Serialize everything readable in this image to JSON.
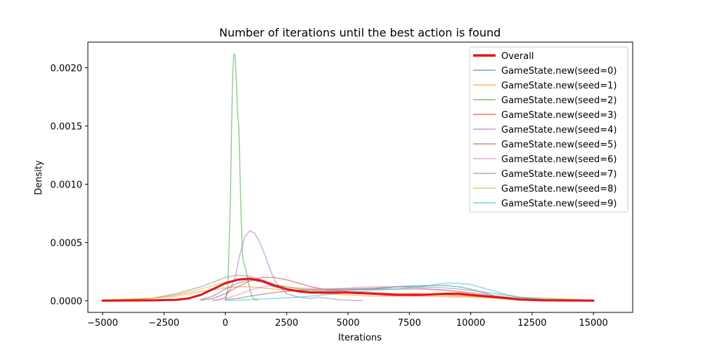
{
  "chart_data": {
    "type": "line",
    "title": "Number of iterations until the best action is found",
    "xlabel": "Iterations",
    "ylabel": "Density",
    "xlim": [
      -5600,
      16600
    ],
    "ylim": [
      -0.0001,
      0.00222
    ],
    "xticks": [
      -5000,
      -2500,
      0,
      2500,
      5000,
      7500,
      10000,
      12500,
      15000
    ],
    "xtick_labels": [
      "−5000",
      "−2500",
      "0",
      "2500",
      "5000",
      "7500",
      "10000",
      "12500",
      "15000"
    ],
    "yticks": [
      0.0,
      0.0005,
      0.001,
      0.0015,
      0.002
    ],
    "ytick_labels": [
      "0.0000",
      "0.0005",
      "0.0010",
      "0.0015",
      "0.0020"
    ],
    "grid": false,
    "legend_position": "top-right",
    "series": [
      {
        "name": "Overall",
        "color": "#ee1111",
        "overall": true,
        "x": [
          -5000,
          -3000,
          -2000,
          -1500,
          -1000,
          -500,
          0,
          500,
          1000,
          1500,
          2000,
          2500,
          3000,
          3500,
          4000,
          5000,
          6000,
          7000,
          8000,
          9000,
          9500,
          10000,
          11000,
          12000,
          13000,
          15000
        ],
        "y": [
          1e-06,
          3e-06,
          8e-06,
          2e-05,
          5e-05,
          0.0001,
          0.00015,
          0.00018,
          0.00019,
          0.00017,
          0.00013,
          0.0001,
          8e-05,
          7e-05,
          7e-05,
          7e-05,
          6e-05,
          5e-05,
          5e-05,
          6e-05,
          6e-05,
          5e-05,
          3e-05,
          1e-05,
          3e-06,
          1e-06
        ]
      },
      {
        "name": "GameState.new(seed=0)",
        "color": "#1f77b4",
        "x": [
          -1000,
          -500,
          0,
          500,
          1000,
          1500,
          2000,
          2500,
          3000,
          3500,
          4000,
          5000,
          6000,
          7000,
          8000,
          9000,
          9500,
          10000,
          10500,
          11000,
          12000,
          13000,
          15000
        ],
        "y": [
          1e-05,
          4e-05,
          0.0001,
          0.00015,
          0.00018,
          0.00016,
          0.00012,
          0.0001,
          9e-05,
          8e-05,
          8e-05,
          9e-05,
          0.0001,
          0.00012,
          0.00013,
          0.00013,
          0.00012,
          0.0001,
          7e-05,
          4e-05,
          2e-05,
          5e-06,
          1e-06
        ]
      },
      {
        "name": "GameState.new(seed=1)",
        "color": "#ff7f0e",
        "x": [
          -5000,
          -3000,
          -2000,
          -1000,
          0,
          500,
          1000,
          1500,
          2000,
          2500,
          3000,
          3500,
          4000,
          5000,
          6000,
          7000,
          8000,
          10000,
          12500,
          15000
        ],
        "y": [
          5e-06,
          2e-05,
          4e-05,
          8e-05,
          0.00011,
          0.00012,
          0.00012,
          0.00011,
          0.0001,
          9e-05,
          8e-05,
          7e-05,
          6e-05,
          5e-05,
          4e-05,
          4e-05,
          4e-05,
          3e-05,
          1e-05,
          5e-06
        ]
      },
      {
        "name": "GameState.new(seed=2)",
        "color": "#2ca02c",
        "x": [
          0,
          100,
          200,
          250,
          300,
          350,
          400,
          450,
          500,
          550,
          600,
          650,
          700,
          750,
          800,
          900,
          1000,
          1100,
          1200,
          1300
        ],
        "y": [
          1e-05,
          0.0001,
          0.0008,
          0.0014,
          0.00195,
          0.00212,
          0.0021,
          0.0019,
          0.0016,
          0.0015,
          0.0011,
          0.0007,
          0.0004,
          0.00032,
          0.0003,
          0.0002,
          0.0001,
          3e-05,
          1e-05,
          5e-06
        ]
      },
      {
        "name": "GameState.new(seed=3)",
        "color": "#d62728",
        "x": [
          -1000,
          -500,
          0,
          500,
          1000,
          1500,
          2000,
          2500,
          3000,
          3500,
          4000,
          5000,
          6000,
          7000,
          8000,
          9000,
          10000,
          11000,
          12000,
          13000,
          15000
        ],
        "y": [
          5e-06,
          2e-05,
          6e-05,
          0.00012,
          0.00017,
          0.0002,
          0.0002,
          0.00018,
          0.00015,
          0.00012,
          0.0001,
          8e-05,
          7e-05,
          6e-05,
          6e-05,
          5e-05,
          4e-05,
          3e-05,
          2e-05,
          1e-05,
          3e-06
        ]
      },
      {
        "name": "GameState.new(seed=4)",
        "color": "#9467bd",
        "x": [
          -500,
          -200,
          0,
          200,
          400,
          600,
          800,
          1000,
          1200,
          1400,
          1600,
          1800,
          2000,
          2200,
          2500,
          3000,
          3500,
          3800,
          4200,
          4600,
          5000,
          5600
        ],
        "y": [
          2e-06,
          1e-05,
          3e-05,
          0.0001,
          0.0002,
          0.0004,
          0.00055,
          0.0006,
          0.00058,
          0.0005,
          0.0004,
          0.00028,
          0.00018,
          0.00012,
          6e-05,
          3e-05,
          2e-05,
          3e-05,
          2e-05,
          1e-05,
          5e-06,
          2e-06
        ]
      },
      {
        "name": "GameState.new(seed=5)",
        "color": "#8c564b",
        "x": [
          0,
          500,
          1000,
          2000,
          3000,
          4000,
          5000,
          6000,
          7000,
          8000,
          9000,
          10000,
          11000,
          12000,
          13000,
          15000
        ],
        "y": [
          1e-05,
          2e-05,
          4e-05,
          7e-05,
          9e-05,
          0.0001,
          0.0001,
          0.0001,
          0.0001,
          0.0001,
          9e-05,
          7e-05,
          4e-05,
          2e-05,
          1e-05,
          5e-06
        ]
      },
      {
        "name": "GameState.new(seed=6)",
        "color": "#e377c2",
        "x": [
          -500,
          0,
          500,
          1000,
          1500,
          2000,
          2500,
          3000,
          4000,
          5000,
          6000,
          7000,
          8000,
          9000,
          10000,
          11000,
          12000,
          13000,
          15000
        ],
        "y": [
          5e-06,
          2e-05,
          5e-05,
          9e-05,
          0.00012,
          0.00013,
          0.00012,
          0.00011,
          0.0001,
          0.00011,
          0.00012,
          0.00012,
          0.00011,
          9e-05,
          6e-05,
          3e-05,
          2e-05,
          1e-05,
          3e-06
        ]
      },
      {
        "name": "GameState.new(seed=7)",
        "color": "#7f7f7f",
        "x": [
          -5000,
          -3000,
          -2000,
          -1000,
          -500,
          0,
          500,
          1000,
          1500,
          2000,
          3000,
          4000,
          5000,
          6000,
          7000,
          8000,
          9000,
          10000,
          11000,
          12000,
          15000
        ],
        "y": [
          5e-06,
          2e-05,
          6e-05,
          0.00012,
          0.00016,
          0.0002,
          0.00022,
          0.00021,
          0.00018,
          0.00014,
          0.0001,
          9e-05,
          0.0001,
          0.00011,
          0.00012,
          0.00012,
          0.00011,
          9e-05,
          6e-05,
          3e-05,
          5e-06
        ]
      },
      {
        "name": "GameState.new(seed=8)",
        "color": "#bcbd22",
        "x": [
          -5000,
          -3000,
          -2000,
          -1000,
          0,
          500,
          1000,
          1500,
          2000,
          3000,
          4000,
          5000,
          6000,
          8000,
          10000,
          12000,
          15000
        ],
        "y": [
          5e-06,
          2e-05,
          5e-05,
          0.0001,
          0.00016,
          0.00018,
          0.00019,
          0.00017,
          0.00014,
          0.0001,
          8e-05,
          7e-05,
          6e-05,
          5e-05,
          4e-05,
          2e-05,
          5e-06
        ]
      },
      {
        "name": "GameState.new(seed=9)",
        "color": "#17becf",
        "x": [
          0,
          500,
          1000,
          2000,
          3000,
          4000,
          5000,
          6000,
          7000,
          8000,
          8500,
          9000,
          9500,
          10000,
          10500,
          11000,
          11500,
          12000,
          13000,
          15000
        ],
        "y": [
          2e-06,
          5e-06,
          1e-05,
          2e-05,
          3e-05,
          5e-05,
          7e-05,
          9e-05,
          0.0001,
          0.00012,
          0.00014,
          0.00015,
          0.00015,
          0.00014,
          0.00011,
          8e-05,
          5e-05,
          3e-05,
          1e-05,
          2e-06
        ]
      }
    ]
  }
}
